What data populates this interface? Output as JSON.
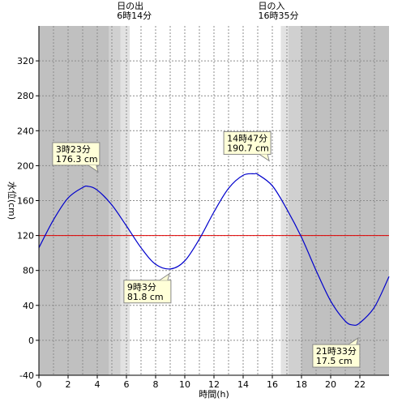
{
  "chart_data": {
    "type": "line",
    "title": "",
    "xlabel": "時間(h)",
    "ylabel": "水位(cm)",
    "xlim": [
      0,
      24
    ],
    "ylim": [
      -40,
      360
    ],
    "x_ticks": [
      0,
      2,
      4,
      6,
      8,
      10,
      12,
      14,
      16,
      18,
      20,
      22
    ],
    "y_ticks": [
      -40,
      0,
      40,
      80,
      120,
      160,
      200,
      240,
      280,
      320
    ],
    "reference_line": {
      "value": 120,
      "color": "#e00000"
    },
    "sunrise": {
      "label": "日の出",
      "time_label": "6時14分",
      "hour": 6.233
    },
    "sunset": {
      "label": "日の入",
      "time_label": "16時35分",
      "hour": 16.583
    },
    "twilight_bands": [
      [
        4.8,
        5.6
      ],
      [
        5.6,
        6.233
      ],
      [
        16.583,
        17.1
      ],
      [
        17.1,
        18.0
      ]
    ],
    "extrema": [
      {
        "time_label": "3時23分",
        "value_label": "176.3 cm",
        "hour": 3.383,
        "value": 176.3,
        "kind": "high"
      },
      {
        "time_label": "9時3分",
        "value_label": "81.8 cm",
        "hour": 9.05,
        "value": 81.8,
        "kind": "low"
      },
      {
        "time_label": "14時47分",
        "value_label": "190.7 cm",
        "hour": 14.783,
        "value": 190.7,
        "kind": "high"
      },
      {
        "time_label": "21時33分",
        "value_label": "17.5 cm",
        "hour": 21.55,
        "value": 17.5,
        "kind": "low"
      }
    ],
    "series": [
      {
        "color": "#0000cc",
        "x": [
          0,
          1,
          2,
          3,
          3.383,
          4,
          5,
          6,
          7,
          8,
          9.05,
          10,
          11,
          12,
          13,
          14,
          14.783,
          15,
          16,
          17,
          18,
          19,
          20,
          21,
          21.55,
          22,
          23,
          24
        ],
        "y": [
          106,
          138,
          163,
          175,
          176.3,
          172,
          155,
          131,
          106,
          87,
          81.8,
          91,
          116,
          147,
          174,
          189,
          190.7,
          190,
          177,
          150,
          118,
          80,
          45,
          22,
          17.5,
          20,
          38,
          73
        ]
      }
    ]
  }
}
